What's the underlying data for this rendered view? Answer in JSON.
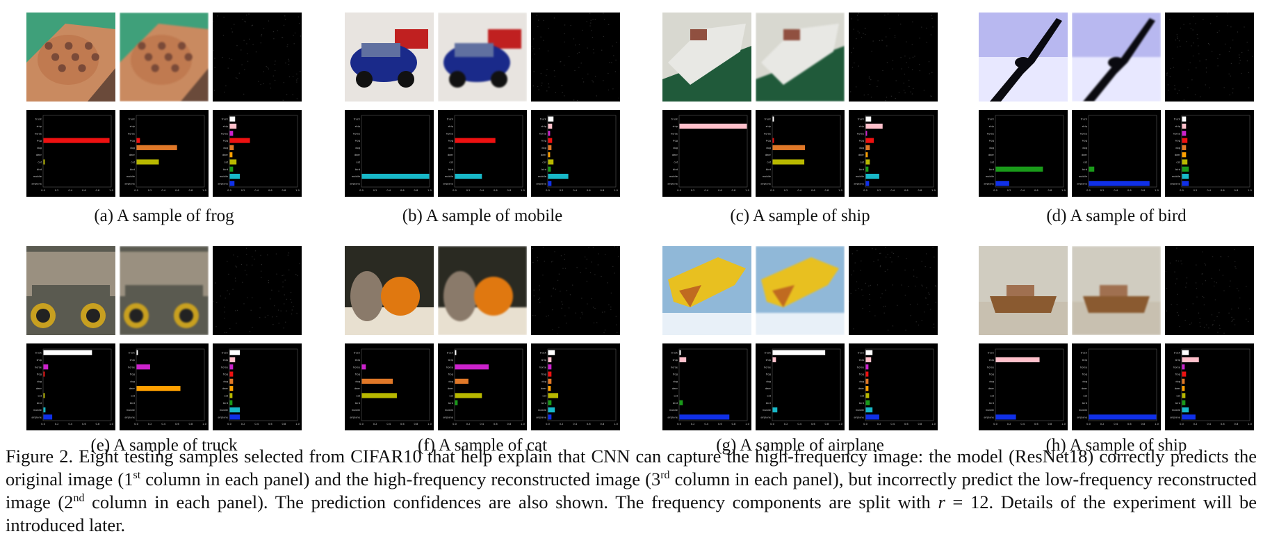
{
  "figure": {
    "number": "Figure 2.",
    "caption_parts": [
      " Eight testing samples selected from CIFAR10 that help explain that CNN can capture the high-frequency image: the model (ResNet18) correctly predicts the original image (1",
      "st",
      " column in each panel) and the high-frequency reconstructed image (3",
      "rd",
      " column in each panel), but incorrectly predict the low-frequency reconstructed image (2",
      "nd",
      " column in each panel). The prediction confidences are also shown. The frequency components are split with ",
      "r",
      " = 12. Details of the experiment will be introduced later."
    ]
  },
  "classes": [
    "truck",
    "ship",
    "horse",
    "frog",
    "dog",
    "deer",
    "cat",
    "bird",
    "mobile",
    "airplane"
  ],
  "class_colors": [
    "#ffffff",
    "#ffc0cb",
    "#cc22cc",
    "#ee1111",
    "#e07828",
    "#ffa000",
    "#b8b800",
    "#1a9a1a",
    "#18b8c8",
    "#1030e8"
  ],
  "tick_labels": [
    "0.0",
    "0.2",
    "0.4",
    "0.6",
    "0.8",
    "1.0"
  ],
  "panels": [
    {
      "caption": "(a) A sample of frog",
      "image": {
        "kind": "frog",
        "c1": "#c98a60",
        "c2": "#3fa07a",
        "c3": "#7a4a38"
      },
      "conf": [
        [
          0,
          0,
          0,
          0.98,
          0,
          0,
          0.02,
          0,
          0,
          0
        ],
        [
          0,
          0,
          0,
          0.05,
          0.6,
          0,
          0.33,
          0,
          0,
          0
        ],
        [
          0.08,
          0.1,
          0.05,
          0.3,
          0.06,
          0.04,
          0.1,
          0.05,
          0.15,
          0.07
        ]
      ]
    },
    {
      "caption": "(b) A sample of mobile",
      "image": {
        "kind": "car",
        "c1": "#e8e4e0",
        "c2": "#1a2a8a",
        "c3": "#c02020"
      },
      "conf": [
        [
          0,
          0,
          0,
          0,
          0,
          0,
          0,
          0,
          1.0,
          0
        ],
        [
          0,
          0,
          0,
          0.6,
          0,
          0,
          0,
          0,
          0.4,
          0
        ],
        [
          0.08,
          0.06,
          0.03,
          0.06,
          0.05,
          0.03,
          0.08,
          0.04,
          0.3,
          0.05
        ]
      ]
    },
    {
      "caption": "(c) A sample of ship",
      "image": {
        "kind": "boat",
        "c1": "#d8d8d0",
        "c2": "#e8e8e4",
        "c3": "#205a3a"
      },
      "conf": [
        [
          0,
          1.0,
          0,
          0,
          0,
          0,
          0,
          0,
          0,
          0
        ],
        [
          0.02,
          0,
          0,
          0.02,
          0.48,
          0,
          0.47,
          0,
          0,
          0
        ],
        [
          0.08,
          0.25,
          0.02,
          0.12,
          0.06,
          0.03,
          0.06,
          0.04,
          0.2,
          0.05
        ]
      ]
    },
    {
      "caption": "(d) A sample of bird",
      "image": {
        "kind": "bird",
        "c1": "#b8b8f0",
        "c2": "#e8e8ff",
        "c3": "#0a0a10"
      },
      "conf": [
        [
          0,
          0,
          0,
          0,
          0,
          0,
          0,
          0.7,
          0,
          0.2
        ],
        [
          0,
          0,
          0,
          0,
          0,
          0,
          0,
          0.08,
          0,
          0.9
        ],
        [
          0.06,
          0.06,
          0.06,
          0.08,
          0.06,
          0.06,
          0.08,
          0.1,
          0.1,
          0.1
        ]
      ]
    },
    {
      "caption": "(e) A sample of truck",
      "image": {
        "kind": "truck",
        "c1": "#5a5a50",
        "c2": "#9a9080",
        "c3": "#c8a020"
      },
      "conf": [
        [
          0.72,
          0,
          0.07,
          0.02,
          0,
          0,
          0.02,
          0,
          0.03,
          0.13
        ]
      ],
      "conf2": [
        [
          0.02,
          0,
          0.2,
          0,
          0,
          0.65,
          0,
          0,
          0,
          0
        ],
        [
          0.15,
          0.08,
          0.05,
          0.05,
          0.05,
          0.05,
          0.04,
          0.04,
          0.15,
          0.15
        ]
      ]
    },
    {
      "caption": "(f) A sample of cat",
      "image": {
        "kind": "cat",
        "c1": "#2a2a22",
        "c2": "#e07810",
        "c3": "#8a7a6a"
      },
      "conf": [
        [
          0,
          0,
          0.06,
          0,
          0.46,
          0,
          0.52,
          0,
          0,
          0
        ]
      ],
      "conf2": [
        [
          0.02,
          0,
          0.5,
          0,
          0.2,
          0,
          0.4,
          0.04,
          0,
          0
        ],
        [
          0.1,
          0.05,
          0.05,
          0.05,
          0.05,
          0.04,
          0.15,
          0.05,
          0.1,
          0.05
        ]
      ]
    },
    {
      "caption": "(g) A sample of airplane",
      "image": {
        "kind": "plane",
        "c1": "#90b8d8",
        "c2": "#e8c020",
        "c3": "#c06a20"
      },
      "conf": [
        [
          0.02,
          0.1,
          0,
          0,
          0,
          0,
          0,
          0.05,
          0,
          0.74
        ]
      ],
      "conf2": [
        [
          0.78,
          0.05,
          0,
          0,
          0,
          0,
          0,
          0,
          0.07,
          0
        ],
        [
          0.1,
          0.08,
          0.04,
          0.04,
          0.04,
          0.04,
          0.05,
          0.06,
          0.1,
          0.2
        ]
      ]
    },
    {
      "caption": "(h) A sample of ship",
      "image": {
        "kind": "boat2",
        "c1": "#d0ccc0",
        "c2": "#8a5a30",
        "c3": "#c8c0b0"
      },
      "conf": [
        [
          0,
          0.65,
          0,
          0,
          0,
          0,
          0,
          0,
          0,
          0.3
        ]
      ],
      "conf2": [
        [
          0,
          0,
          0,
          0,
          0,
          0,
          0,
          0,
          0,
          1.0
        ],
        [
          0.1,
          0.25,
          0.04,
          0.06,
          0.04,
          0.04,
          0.05,
          0.05,
          0.1,
          0.2
        ]
      ]
    }
  ]
}
